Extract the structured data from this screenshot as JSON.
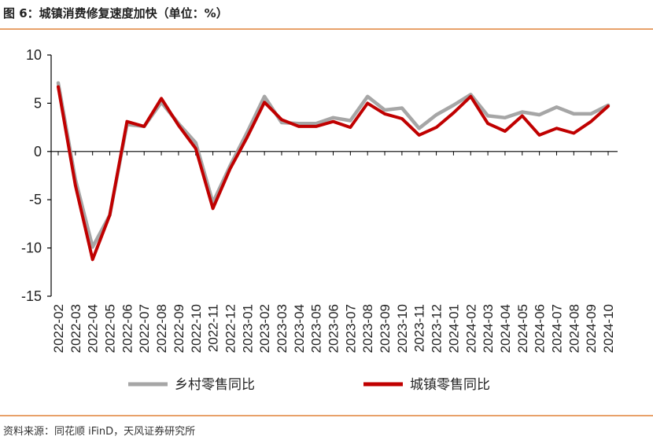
{
  "title": "图 6：城镇消费修复速度加快（单位：%）",
  "source": "资料来源：同花顺 iFinD，天风证券研究所",
  "colors": {
    "rural": "#a6a6a6",
    "urban": "#c00000",
    "rule": "#e8a16a"
  },
  "chart_data": {
    "type": "line",
    "title": "城镇消费修复速度加快（单位：%）",
    "xlabel": "",
    "ylabel": "",
    "ylim": [
      -15,
      10
    ],
    "yticks": [
      "10",
      "5",
      "0",
      "-5",
      "-10",
      "-15"
    ],
    "grid": false,
    "legend_position": "bottom",
    "x": [
      "2022-02",
      "2022-03",
      "2022-04",
      "2022-05",
      "2022-06",
      "2022-07",
      "2022-08",
      "2022-09",
      "2022-10",
      "2022-11",
      "2022-12",
      "2023-01",
      "2023-02",
      "2023-03",
      "2023-04",
      "2023-05",
      "2023-06",
      "2023-07",
      "2023-08",
      "2023-09",
      "2023-10",
      "2023-11",
      "2023-12",
      "2024-01",
      "2024-02",
      "2024-03",
      "2024-04",
      "2024-05",
      "2024-06",
      "2024-07",
      "2024-08",
      "2024-09",
      "2024-10"
    ],
    "series": [
      {
        "name": "乡村零售同比",
        "values": [
          7.1,
          -2.9,
          -9.9,
          -6.6,
          2.8,
          2.6,
          5.1,
          2.9,
          0.9,
          -5.3,
          -1.5,
          2.0,
          5.7,
          3.0,
          2.9,
          2.9,
          3.5,
          3.2,
          5.7,
          4.3,
          4.5,
          2.4,
          3.8,
          4.8,
          5.9,
          3.7,
          3.5,
          4.1,
          3.8,
          4.6,
          3.9,
          3.9,
          4.8
        ]
      },
      {
        "name": "城镇零售同比",
        "values": [
          6.7,
          -3.5,
          -11.2,
          -6.6,
          3.1,
          2.6,
          5.5,
          2.7,
          0.3,
          -5.9,
          -1.8,
          1.5,
          5.1,
          3.3,
          2.6,
          2.6,
          3.1,
          2.5,
          5.0,
          3.9,
          3.4,
          1.7,
          2.5,
          4.0,
          5.7,
          2.9,
          2.1,
          3.7,
          1.7,
          2.4,
          1.9,
          3.1,
          4.7
        ]
      }
    ]
  }
}
